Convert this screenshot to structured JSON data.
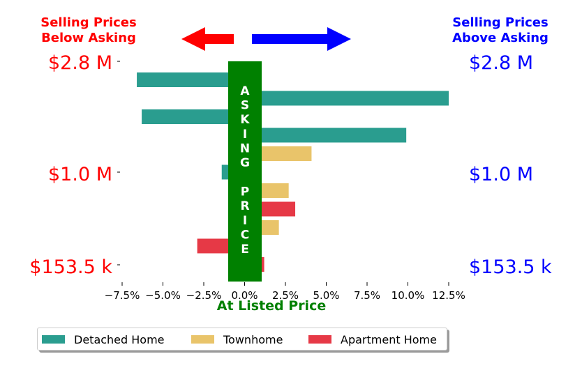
{
  "headers": {
    "left": [
      "Selling Prices",
      "Below Asking"
    ],
    "right": [
      "Selling Prices",
      "Above Asking"
    ]
  },
  "price_levels": {
    "left": [
      "$2.8 M",
      "$1.0 M",
      "$153.5 k"
    ],
    "right": [
      "$2.8 M",
      "$1.0 M",
      "$153.5 k"
    ]
  },
  "asking_price_label": "ASKING PRICE",
  "colors": {
    "below": "#ff0000",
    "above": "#0000ff",
    "asking": "#008000",
    "Detached Home": "#2a9d8f",
    "Townhome": "#e9c46a",
    "Apartment Home": "#e63946"
  },
  "chart_data": {
    "type": "bar",
    "orientation": "horizontal",
    "xlabel": "At Listed Price",
    "xlim": [
      -7.5,
      12.5
    ],
    "xticks": [
      -7.5,
      -5.0,
      -2.5,
      0.0,
      2.5,
      5.0,
      7.5,
      10.0,
      12.5
    ],
    "xtick_labels": [
      "−7.5%",
      "−5.0%",
      "−2.5%",
      "0.0%",
      "2.5%",
      "5.0%",
      "7.5%",
      "10.0%",
      "12.5%"
    ],
    "series_order": [
      "Detached Home",
      "Townhome",
      "Apartment Home"
    ],
    "bars": [
      {
        "series": "Detached Home",
        "value": -6.6
      },
      {
        "series": "Detached Home",
        "value": 12.5
      },
      {
        "series": "Detached Home",
        "value": -6.3
      },
      {
        "series": "Detached Home",
        "value": 9.9
      },
      {
        "series": "Townhome",
        "value": 4.1
      },
      {
        "series": "Detached Home",
        "value": -1.4
      },
      {
        "series": "Townhome",
        "value": 2.7
      },
      {
        "series": "Apartment Home",
        "value": 3.1
      },
      {
        "series": "Townhome",
        "value": 2.1
      },
      {
        "series": "Apartment Home",
        "value": -2.9
      },
      {
        "series": "Apartment Home",
        "value": 1.2
      }
    ],
    "legend": [
      "Detached Home",
      "Townhome",
      "Apartment Home"
    ],
    "legend_position": "bottom"
  }
}
